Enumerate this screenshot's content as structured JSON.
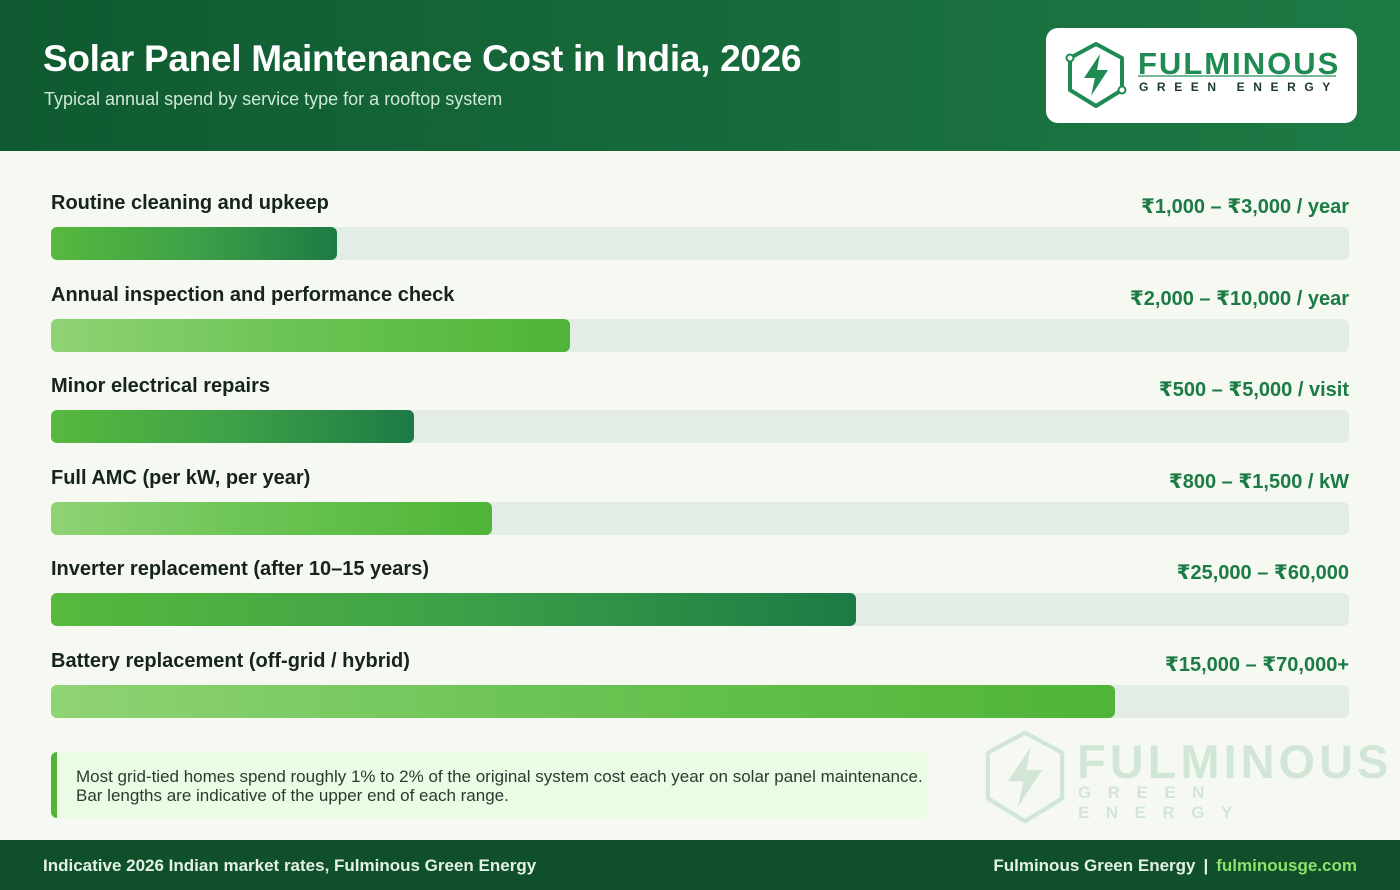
{
  "header": {
    "title": "Solar Panel Maintenance Cost in India, 2026",
    "subtitle": "Typical annual spend by service type for a rooftop system"
  },
  "logo": {
    "name": "FULMINOUS",
    "tagline": "GREEN ENERGY",
    "icon": "lightning-hexagon-icon"
  },
  "chart_data": {
    "type": "bar",
    "orientation": "horizontal",
    "categories": [
      "Routine cleaning and upkeep",
      "Annual inspection and performance check",
      "Minor electrical repairs",
      "Full AMC (per kW, per year)",
      "Inverter replacement (after 10–15 years)",
      "Battery replacement (off-grid / hybrid)"
    ],
    "value_labels": [
      "₹1,000 – ₹3,000 / year",
      "₹2,000 – ₹10,000 / year",
      "₹500 – ₹5,000 / visit",
      "₹800 – ₹1,500 / kW",
      "₹25,000 – ₹60,000",
      "₹15,000 – ₹70,000+"
    ],
    "relative_bar_length": [
      0.22,
      0.4,
      0.28,
      0.34,
      0.62,
      0.82
    ],
    "bar_style": [
      "dark",
      "light",
      "dark",
      "light",
      "dark",
      "light"
    ],
    "colors": {
      "dark_end": "#1d7a45",
      "light_start": "#8fd375",
      "accent": "#4fb437",
      "track": "#e4ede5",
      "value_text": "#1c7a45"
    },
    "xlim": [
      0,
      1
    ]
  },
  "note": "Most grid-tied homes spend roughly 1% to 2% of the original system cost each year on solar panel maintenance. Bar lengths are indicative of the upper end of each range.",
  "footer": {
    "left": "Indicative 2026 Indian market rates, Fulminous Green Energy",
    "brand": "Fulminous Green Energy",
    "separator": "|",
    "site": "fulminousge.com"
  }
}
